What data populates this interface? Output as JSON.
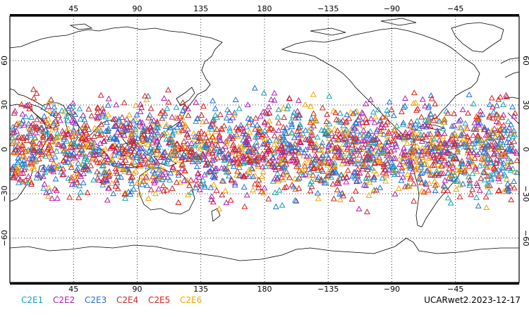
{
  "map": {
    "projection": "cylindrical equidistant",
    "lon_range": [
      0,
      360
    ],
    "lat_range": [
      -90,
      90
    ],
    "lon_tick_labels": [
      {
        "lon": 45,
        "text": "45"
      },
      {
        "lon": 90,
        "text": "90"
      },
      {
        "lon": 135,
        "text": "135"
      },
      {
        "lon": 180,
        "text": "180"
      },
      {
        "lon": 225,
        "text": "−135"
      },
      {
        "lon": 270,
        "text": "−90"
      },
      {
        "lon": 315,
        "text": "−45"
      }
    ],
    "lat_tick_labels": [
      {
        "lat": 60,
        "text": "60"
      },
      {
        "lat": 30,
        "text": "30"
      },
      {
        "lat": 0,
        "text": "0"
      },
      {
        "lat": -30,
        "text": "−30"
      },
      {
        "lat": -60,
        "text": "−60"
      }
    ],
    "gridlines": "dotted",
    "coastline_color": "#000000",
    "marker_shape": "open triangle"
  },
  "chart_data": {
    "type": "scatter",
    "description_of_points": "radio occultation observation locations, concentrated between about 45S and 45N",
    "lat_band": [
      -45,
      45
    ],
    "series": [
      {
        "name": "C2E1",
        "color": "#17a2b8"
      },
      {
        "name": "C2E2",
        "color": "#b020b0"
      },
      {
        "name": "C2E3",
        "color": "#1f6fdf"
      },
      {
        "name": "C2E4",
        "color": "#c62828"
      },
      {
        "name": "C2E5",
        "color": "#e0201a"
      },
      {
        "name": "C2E6",
        "color": "#f0a800"
      }
    ]
  },
  "legend": {
    "items": [
      "C2E1",
      "C2E2",
      "C2E3",
      "C2E4",
      "C2E5",
      "C2E6"
    ]
  },
  "dataset_label": "UCARwet2.2023-12-17"
}
